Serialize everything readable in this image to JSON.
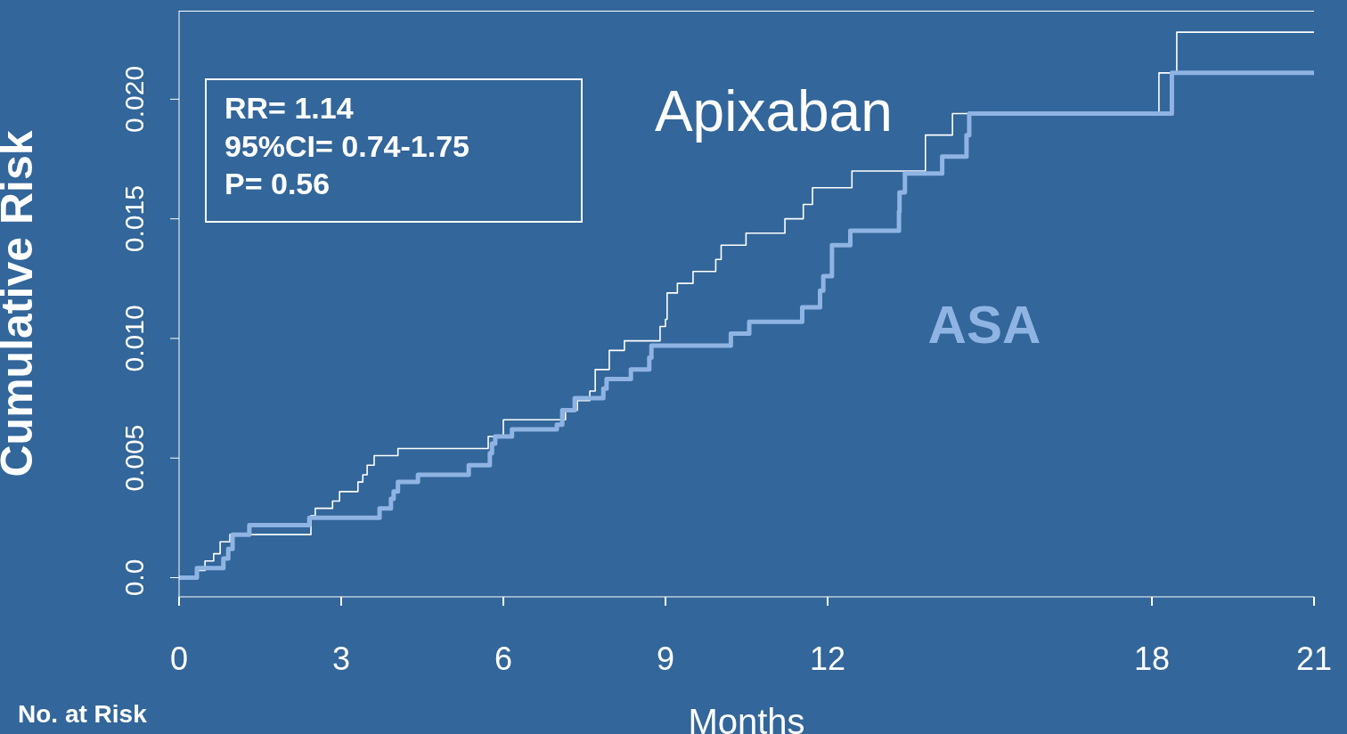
{
  "chart_data": {
    "type": "step",
    "xlabel": "Months",
    "ylabel": "Cumulative Risk",
    "xlim": [
      0,
      21
    ],
    "xticks": [
      0,
      3,
      6,
      9,
      12,
      18,
      21
    ],
    "ylim": [
      -0.0008,
      0.0237
    ],
    "yticks": [
      {
        "value": 0,
        "label": "0.0"
      },
      {
        "value": 0.005,
        "label": "0.005"
      },
      {
        "value": 0.01,
        "label": "0.010"
      },
      {
        "value": 0.015,
        "label": "0.015"
      },
      {
        "value": 0.02,
        "label": "0.020"
      }
    ],
    "grid": false,
    "legend": false,
    "annotations": [
      "RR= 1.14",
      "95%CI= 0.74-1.75",
      "P= 0.56",
      "No. at Risk"
    ],
    "series": [
      {
        "name": "Apixaban",
        "color": "#ffffff",
        "x": [
          0,
          0.31,
          0.48,
          0.64,
          0.76,
          0.94,
          2.44,
          2.52,
          2.84,
          2.97,
          3.31,
          3.4,
          3.48,
          3.61,
          4.05,
          5.72,
          6.0,
          7.15,
          7.37,
          7.6,
          7.7,
          7.96,
          8.24,
          8.9,
          9.0,
          9.03,
          9.22,
          9.51,
          9.93,
          10.03,
          10.49,
          11.21,
          11.55,
          11.72,
          12.45,
          13.81,
          14.31,
          18.13,
          18.46,
          21
        ],
        "values": [
          0,
          0.0003,
          0.0007,
          0.001,
          0.0015,
          0.0018,
          0.0026,
          0.0029,
          0.0032,
          0.0036,
          0.004,
          0.0043,
          0.0047,
          0.0051,
          0.0054,
          0.0059,
          0.0066,
          0.007,
          0.0074,
          0.0078,
          0.0087,
          0.0095,
          0.0099,
          0.0105,
          0.0108,
          0.0119,
          0.0123,
          0.0128,
          0.0133,
          0.0139,
          0.0144,
          0.015,
          0.0156,
          0.0163,
          0.017,
          0.0185,
          0.0194,
          0.0211,
          0.0228,
          0.0228
        ]
      },
      {
        "name": "ASA",
        "color": "#8fb4e3",
        "x": [
          0,
          0.33,
          0.82,
          0.91,
          0.99,
          1.3,
          2.41,
          3.71,
          3.92,
          3.97,
          4.05,
          4.42,
          5.36,
          5.75,
          5.79,
          5.85,
          6.16,
          6.99,
          7.09,
          7.32,
          7.85,
          7.91,
          8.36,
          8.7,
          8.74,
          10.21,
          10.55,
          11.53,
          11.86,
          11.92,
          12.08,
          12.42,
          13.32,
          13.33,
          13.43,
          14.12,
          14.57,
          14.62,
          18.37,
          21
        ],
        "values": [
          0,
          0.0004,
          0.0008,
          0.0012,
          0.0018,
          0.0022,
          0.0025,
          0.0029,
          0.0033,
          0.0036,
          0.004,
          0.0043,
          0.0047,
          0.0052,
          0.0056,
          0.0059,
          0.0062,
          0.0064,
          0.007,
          0.0075,
          0.0079,
          0.0083,
          0.0087,
          0.0092,
          0.0097,
          0.0102,
          0.0107,
          0.0113,
          0.012,
          0.0126,
          0.0139,
          0.0145,
          0.0153,
          0.0161,
          0.0169,
          0.0176,
          0.0185,
          0.0194,
          0.0211,
          0.0211
        ]
      }
    ]
  }
}
